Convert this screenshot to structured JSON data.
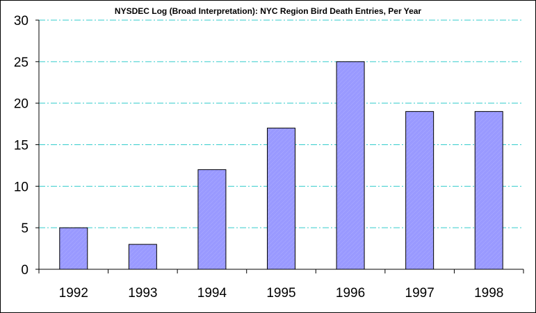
{
  "chart_data": {
    "type": "bar",
    "title": "NYSDEC Log (Broad Interpretation): NYC Region Bird Death Entries, Per Year",
    "categories": [
      "1992",
      "1993",
      "1994",
      "1995",
      "1996",
      "1997",
      "1998"
    ],
    "values": [
      5,
      3,
      12,
      17,
      25,
      19,
      19
    ],
    "xlabel": "",
    "ylabel": "",
    "ylim": [
      0,
      30
    ],
    "yticks": [
      "0",
      "5",
      "10",
      "15",
      "20",
      "25",
      "30"
    ],
    "grid": "horizontal dash-dot",
    "legend": "none",
    "colors": {
      "bar_fill": "#9999ff",
      "bar_stroke": "#000000",
      "grid": "#33cccc",
      "axis": "#000000"
    }
  }
}
